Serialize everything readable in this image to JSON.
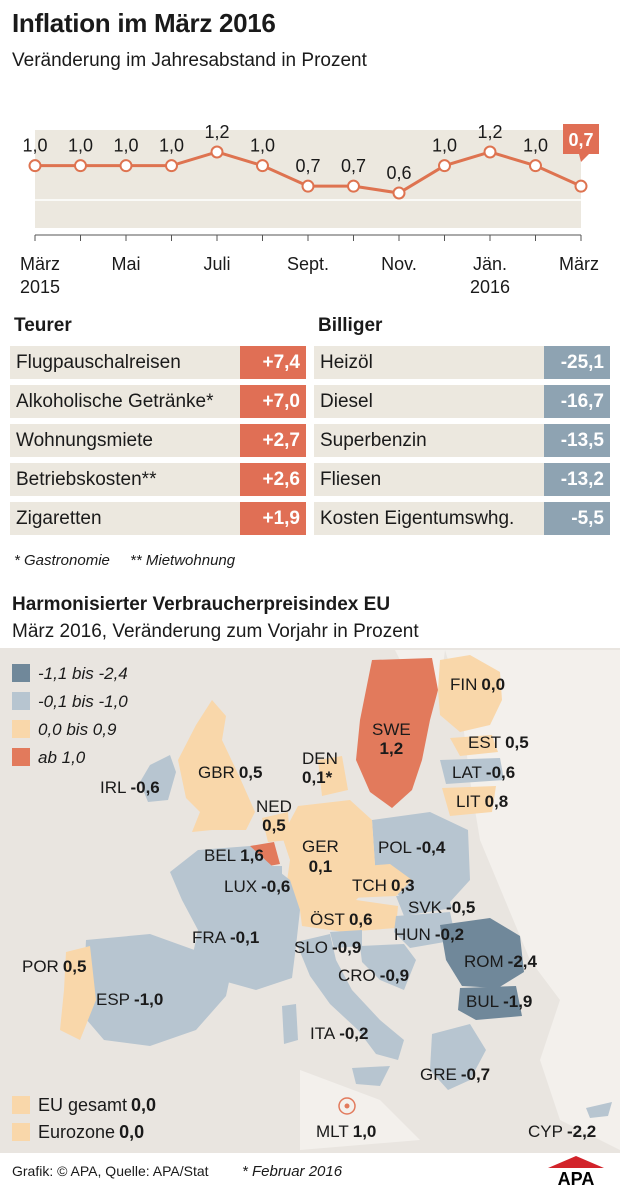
{
  "title": "Inflation im März 2016",
  "subtitle": "Veränderung im Jahresabstand in Prozent",
  "chart_data": {
    "type": "line",
    "x": [
      "März 2015",
      "Apr. 2015",
      "Mai 2015",
      "Juni 2015",
      "Juli 2015",
      "Aug. 2015",
      "Sept. 2015",
      "Okt. 2015",
      "Nov. 2015",
      "Dez. 2015",
      "Jän. 2016",
      "Feb. 2016",
      "März 2016"
    ],
    "values": [
      1.0,
      1.0,
      1.0,
      1.0,
      1.2,
      1.0,
      0.7,
      0.7,
      0.6,
      1.0,
      1.2,
      1.0,
      0.7
    ],
    "data_labels": [
      "1,0",
      "1,0",
      "1,0",
      "1,0",
      "1,2",
      "1,0",
      "0,7",
      "0,7",
      "0,6",
      "1,0",
      "1,2",
      "1,0",
      "0,7"
    ],
    "tick_labels": [
      {
        "index": 0,
        "line1": "März",
        "line2": "2015"
      },
      {
        "index": 2,
        "line1": "Mai",
        "line2": ""
      },
      {
        "index": 4,
        "line1": "Juli",
        "line2": ""
      },
      {
        "index": 6,
        "line1": "Sept.",
        "line2": ""
      },
      {
        "index": 8,
        "line1": "Nov.",
        "line2": ""
      },
      {
        "index": 10,
        "line1": "Jän.",
        "line2": "2016"
      },
      {
        "index": 12,
        "line1": "März",
        "line2": ""
      }
    ],
    "highlight_index": 12,
    "ylim": [
      0.0,
      1.4
    ],
    "colors": {
      "line": "#de7350",
      "band": "#ece8df",
      "highlight": "#e06f55"
    }
  },
  "teurer": {
    "heading": "Teurer",
    "items": [
      {
        "label": "Flugpauschalreisen",
        "value": "+7,4"
      },
      {
        "label": "Alkoholische Getränke*",
        "value": "+7,0"
      },
      {
        "label": "Wohnungsmiete",
        "value": "+2,7"
      },
      {
        "label": "Betriebskosten**",
        "value": "+2,6"
      },
      {
        "label": "Zigaretten",
        "value": "+1,9"
      }
    ]
  },
  "billiger": {
    "heading": "Billiger",
    "items": [
      {
        "label": "Heizöl",
        "value": "-25,1"
      },
      {
        "label": "Diesel",
        "value": "-16,7"
      },
      {
        "label": "Superbenzin",
        "value": "-13,5"
      },
      {
        "label": "Fliesen",
        "value": "-13,2"
      },
      {
        "label": "Kosten Eigentumswhg.",
        "value": "-5,5"
      }
    ]
  },
  "footnotes": [
    "* Gastronomie",
    "** Mietwohnung"
  ],
  "map": {
    "title": "Harmonisierter Verbraucherpreisindex EU",
    "subtitle": "März 2016, Veränderung zum Vorjahr in Prozent",
    "legend": [
      {
        "label": "-1,1 bis -2,4",
        "color": "#70889a"
      },
      {
        "label": "-0,1 bis -1,0",
        "color": "#b7c5d0"
      },
      {
        "label": "0,0 bis 0,9",
        "color": "#f9d7aa"
      },
      {
        "label": "ab 1,0",
        "color": "#e27a5c"
      }
    ],
    "countries": [
      {
        "code": "FIN",
        "value": "0,0"
      },
      {
        "code": "SWE",
        "value": "1,2"
      },
      {
        "code": "EST",
        "value": "0,5"
      },
      {
        "code": "LAT",
        "value": "-0,6"
      },
      {
        "code": "LIT",
        "value": "0,8"
      },
      {
        "code": "DEN",
        "value": "0,1*"
      },
      {
        "code": "IRL",
        "value": "-0,6"
      },
      {
        "code": "GBR",
        "value": "0,5"
      },
      {
        "code": "NED",
        "value": "0,5"
      },
      {
        "code": "BEL",
        "value": "1,6"
      },
      {
        "code": "LUX",
        "value": "-0,6"
      },
      {
        "code": "GER",
        "value": "0,1"
      },
      {
        "code": "POL",
        "value": "-0,4"
      },
      {
        "code": "TCH",
        "value": "0,3"
      },
      {
        "code": "SVK",
        "value": "-0,5"
      },
      {
        "code": "ÖST",
        "value": "0,6"
      },
      {
        "code": "HUN",
        "value": "-0,2"
      },
      {
        "code": "FRA",
        "value": "-0,1"
      },
      {
        "code": "SLO",
        "value": "-0,9"
      },
      {
        "code": "ROM",
        "value": "-2,4"
      },
      {
        "code": "CRO",
        "value": "-0,9"
      },
      {
        "code": "POR",
        "value": "0,5"
      },
      {
        "code": "ESP",
        "value": "-1,0"
      },
      {
        "code": "BUL",
        "value": "-1,9"
      },
      {
        "code": "ITA",
        "value": "-0,2"
      },
      {
        "code": "GRE",
        "value": "-0,7"
      },
      {
        "code": "MLT",
        "value": "1,0"
      },
      {
        "code": "CYP",
        "value": "-2,2"
      }
    ],
    "totals": [
      {
        "label": "EU gesamt",
        "value": "0,0"
      },
      {
        "label": "Eurozone",
        "value": "0,0"
      }
    ]
  },
  "credit": "Grafik: © APA, Quelle: APA/Stat",
  "credit_note": "* Februar 2016",
  "logo_text": "APA"
}
